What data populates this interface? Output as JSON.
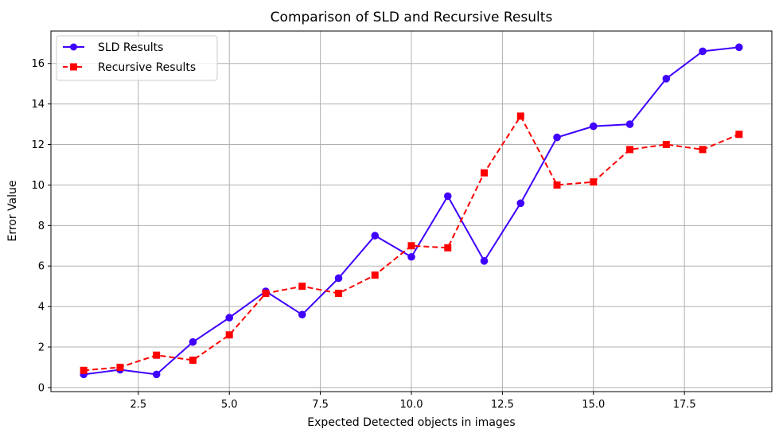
{
  "chart_data": {
    "type": "line",
    "title": "Comparison of SLD and Recursive Results",
    "xlabel": "Expected Detected objects in images",
    "ylabel": "Error Value",
    "xlim": [
      0.1,
      19.9
    ],
    "ylim": [
      -0.2,
      17.6
    ],
    "xticks": [
      2.5,
      5.0,
      7.5,
      10.0,
      12.5,
      15.0,
      17.5
    ],
    "xtick_labels": [
      "2.5",
      "5.0",
      "7.5",
      "10.0",
      "12.5",
      "15.0",
      "17.5"
    ],
    "yticks": [
      0,
      2,
      4,
      6,
      8,
      10,
      12,
      14,
      16
    ],
    "ytick_labels": [
      "0",
      "2",
      "4",
      "6",
      "8",
      "10",
      "12",
      "14",
      "16"
    ],
    "grid": true,
    "legend_position": "top-left",
    "x": [
      1,
      2,
      3,
      4,
      5,
      6,
      7,
      8,
      9,
      10,
      11,
      12,
      13,
      14,
      15,
      16,
      17,
      18,
      19
    ],
    "series": [
      {
        "name": "SLD Results",
        "color": "#3f00ff",
        "line_style": "solid",
        "marker": "circle",
        "values": [
          0.65,
          0.88,
          0.65,
          2.25,
          3.45,
          4.75,
          3.6,
          5.4,
          7.5,
          6.45,
          9.45,
          6.25,
          9.1,
          12.35,
          12.9,
          13.0,
          15.25,
          16.6,
          16.8
        ]
      },
      {
        "name": "Recursive Results",
        "color": "#ff0000",
        "line_style": "dashed",
        "marker": "square",
        "values": [
          0.85,
          1.0,
          1.6,
          1.35,
          2.6,
          4.65,
          5.0,
          4.65,
          5.55,
          7.0,
          6.9,
          10.6,
          13.4,
          10.0,
          10.15,
          11.75,
          12.0,
          11.75,
          12.5
        ]
      }
    ]
  }
}
